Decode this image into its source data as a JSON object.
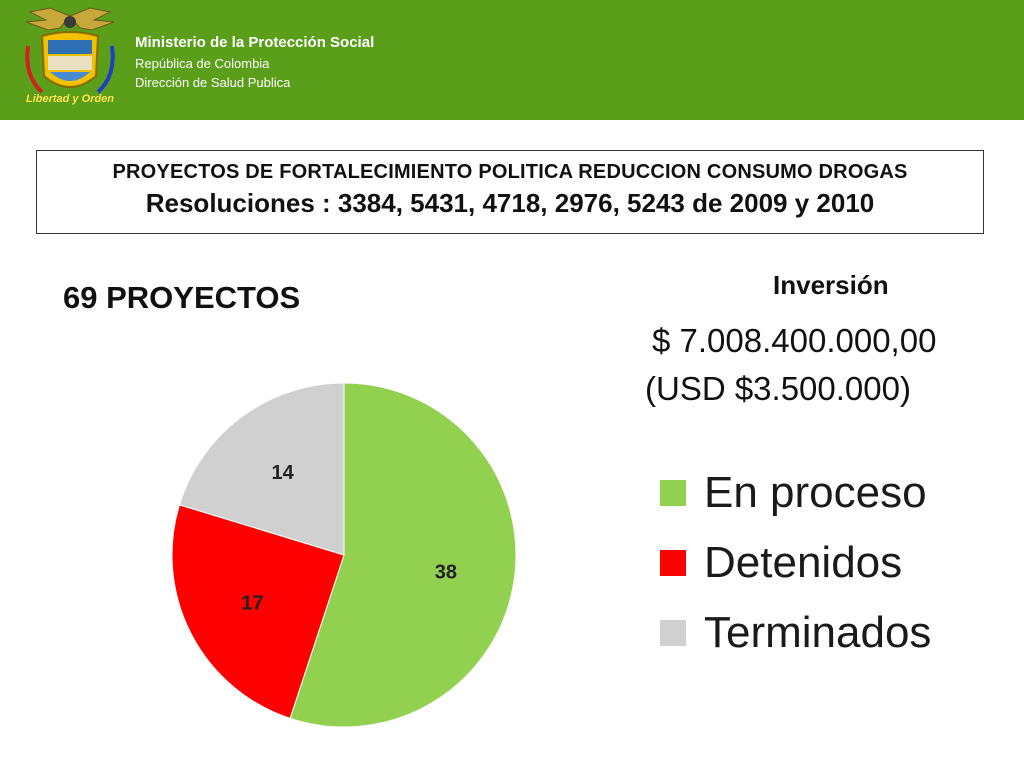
{
  "header": {
    "seal_caption": "Libertad y Orden",
    "ministry": "Ministerio de la Protección Social",
    "country": "República de Colombia",
    "directorate": "Dirección de Salud Publica"
  },
  "title": {
    "line1": "PROYECTOS DE FORTALECIMIENTO POLITICA REDUCCION CONSUMO DROGAS",
    "line2": "Resoluciones : 3384, 5431, 4718, 2976, 5243  de 2009 y 2010"
  },
  "project_count": "69 PROYECTOS",
  "investment": {
    "label": "Inversión",
    "cop": "$  7.008.400.000,00",
    "usd": "(USD $3.500.000)"
  },
  "chart_data": {
    "type": "pie",
    "categories": [
      "En proceso",
      "Detenidos",
      "Terminados"
    ],
    "values": [
      38,
      17,
      14
    ],
    "colors": [
      "#92d050",
      "#ff0000",
      "#d0d0d0"
    ],
    "data_labels": [
      "38",
      "17",
      "14"
    ],
    "legend": "right"
  }
}
